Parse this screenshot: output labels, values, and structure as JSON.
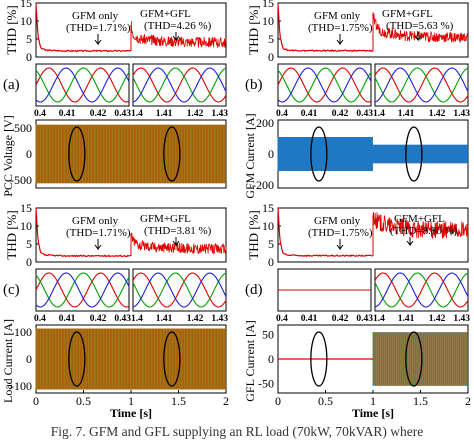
{
  "figure": {
    "caption": "Fig. 7. GFM and GFL supplying an RL load (70kW, 70kVAR) where"
  },
  "colors": {
    "thd_trace": "#e00000",
    "phase_a": "#e00000",
    "phase_b": "#00a000",
    "phase_c": "#2020e0",
    "gfm_current_blue": "#1f77c4",
    "gfl_mixed": "#22a3a0"
  },
  "chart_data": [
    {
      "type": "line",
      "panel": "(a)",
      "subplots": {
        "thd": {
          "ylabel": "THD [%]",
          "yticks": [
            "0",
            "5",
            "10",
            "15"
          ],
          "ylim": [
            0,
            15
          ],
          "annotations": [
            "GFM only",
            "(THD=1.71%)",
            "GFM+GFL",
            "(THD=4.26 %)"
          ],
          "series": [
            {
              "segment": "GFM only",
              "x": [
                0,
                0.02,
                0.05,
                0.1,
                0.3,
                0.6,
                1.0
              ],
              "values": [
                15,
                6,
                2.5,
                1.9,
                1.7,
                1.7,
                1.7
              ]
            },
            {
              "segment": "GFM+GFL",
              "x": [
                1.0,
                1.02,
                1.1,
                1.3,
                1.6,
                2.0
              ],
              "values": [
                9,
                6.5,
                5,
                4.5,
                4.2,
                4.0
              ]
            }
          ]
        },
        "zoom_left": {
          "xticks": [
            "0.4",
            "0.41",
            "0.42",
            "0.43"
          ],
          "xlim": [
            0.4,
            0.43
          ]
        },
        "zoom_right": {
          "xticks": [
            "1.4",
            "1.41",
            "1.42",
            "1.43"
          ],
          "xlim": [
            1.4,
            1.43
          ]
        },
        "main": {
          "ylabel": "PCC Voltage [V]",
          "yticks": [
            "-500",
            "0",
            "500"
          ],
          "ylim": [
            -650,
            650
          ],
          "amplitude": [
            {
              "x": [
                0,
                2
              ],
              "values": [
                560,
                560
              ]
            }
          ]
        }
      }
    },
    {
      "type": "line",
      "panel": "(b)",
      "subplots": {
        "thd": {
          "ylabel": "THD [%]",
          "yticks": [
            "0",
            "5",
            "10",
            "15"
          ],
          "ylim": [
            0,
            15
          ],
          "annotations": [
            "GFM only",
            "(THD=1.75%)",
            "GFM+GFL",
            "(THD=5.63 %)"
          ],
          "series": [
            {
              "segment": "GFM only",
              "x": [
                0,
                0.02,
                0.05,
                0.1,
                0.3,
                0.6,
                1.0
              ],
              "values": [
                15,
                6,
                2.5,
                1.9,
                1.75,
                1.75,
                1.75
              ]
            },
            {
              "segment": "GFM+GFL",
              "x": [
                1.0,
                1.02,
                1.1,
                1.3,
                1.6,
                2.0
              ],
              "values": [
                12,
                9,
                7,
                6,
                5.6,
                5.4
              ]
            }
          ]
        },
        "zoom_left": {
          "xticks": [
            "0.4",
            "0.41",
            "0.42",
            "0.43"
          ],
          "xlim": [
            0.4,
            0.43
          ]
        },
        "zoom_right": {
          "xticks": [
            "1.4",
            "1.41",
            "1.42",
            "1.43"
          ],
          "xlim": [
            1.4,
            1.43
          ]
        },
        "main": {
          "ylabel": "GFM Current [A]",
          "yticks": [
            "-200",
            "0",
            "200"
          ],
          "ylim": [
            -220,
            220
          ],
          "amplitude": [
            {
              "x": [
                0,
                1,
                1,
                2
              ],
              "values": [
                110,
                110,
                60,
                60
              ]
            }
          ]
        }
      }
    },
    {
      "type": "line",
      "panel": "(c)",
      "subplots": {
        "thd": {
          "ylabel": "THD [%]",
          "yticks": [
            "0",
            "5",
            "10",
            "15"
          ],
          "ylim": [
            0,
            15
          ],
          "annotations": [
            "GFM only",
            "(THD=1.71%)",
            "GFM+GFL",
            "(THD=3.81 %)"
          ],
          "series": [
            {
              "segment": "GFM only",
              "x": [
                0,
                0.02,
                0.05,
                0.1,
                0.3,
                0.6,
                1.0
              ],
              "values": [
                15,
                6,
                2.5,
                1.9,
                1.7,
                1.7,
                1.7
              ]
            },
            {
              "segment": "GFM+GFL",
              "x": [
                1.0,
                1.02,
                1.1,
                1.3,
                1.6,
                2.0
              ],
              "values": [
                8,
                6,
                4.6,
                4.1,
                3.8,
                3.6
              ]
            }
          ]
        },
        "zoom_left": {
          "xticks": [
            "0.4",
            "0.41",
            "0.42",
            "0.43"
          ],
          "xlim": [
            0.4,
            0.43
          ]
        },
        "zoom_right": {
          "xticks": [
            "1.4",
            "1.41",
            "1.42",
            "1.43"
          ],
          "xlim": [
            1.4,
            1.43
          ]
        },
        "main": {
          "ylabel": "Load Current [A]",
          "xlabel": "Time [s]",
          "xticks": [
            "0",
            "0.5",
            "1",
            "1.5",
            "2"
          ],
          "yticks": [
            "-100",
            "0",
            "100"
          ],
          "ylim": [
            -125,
            125
          ],
          "amplitude": [
            {
              "x": [
                0,
                2
              ],
              "values": [
                112,
                112
              ]
            }
          ]
        }
      }
    },
    {
      "type": "line",
      "panel": "(d)",
      "subplots": {
        "thd": {
          "ylabel": "THD [%]",
          "yticks": [
            "0",
            "5",
            "10",
            "15"
          ],
          "ylim": [
            0,
            15
          ],
          "annotations": [
            "GFM only",
            "(THD=1.75%)",
            "GFM+GFL",
            "(THD=8.86 %)"
          ],
          "series": [
            {
              "segment": "GFM only",
              "x": [
                0,
                0.02,
                0.05,
                0.1,
                0.3,
                0.6,
                1.0
              ],
              "values": [
                15,
                6,
                2.5,
                1.9,
                1.75,
                1.75,
                1.75
              ]
            },
            {
              "segment": "GFM+GFL",
              "x": [
                1.0,
                1.05,
                1.2,
                1.5,
                2.0
              ],
              "values": [
                13,
                11,
                10,
                9,
                8.8
              ]
            }
          ]
        },
        "zoom_left": {
          "xticks": [
            "0.4",
            "0.41",
            "0.42",
            "0.43"
          ],
          "xlim": [
            0.4,
            0.43
          ]
        },
        "zoom_right": {
          "xticks": [
            "1.4",
            "1.41",
            "1.42",
            "1.43"
          ],
          "xlim": [
            1.4,
            1.43
          ]
        },
        "main": {
          "ylabel": "GFL Current [A]",
          "xlabel": "Time [s]",
          "xticks": [
            "0",
            "0.5",
            "1",
            "1.5",
            "2"
          ],
          "yticks": [
            "-50",
            "0",
            "50"
          ],
          "ylim": [
            -70,
            70
          ],
          "amplitude": [
            {
              "x": [
                0,
                1,
                1,
                2
              ],
              "values": [
                0,
                0,
                55,
                55
              ]
            }
          ]
        }
      }
    }
  ]
}
